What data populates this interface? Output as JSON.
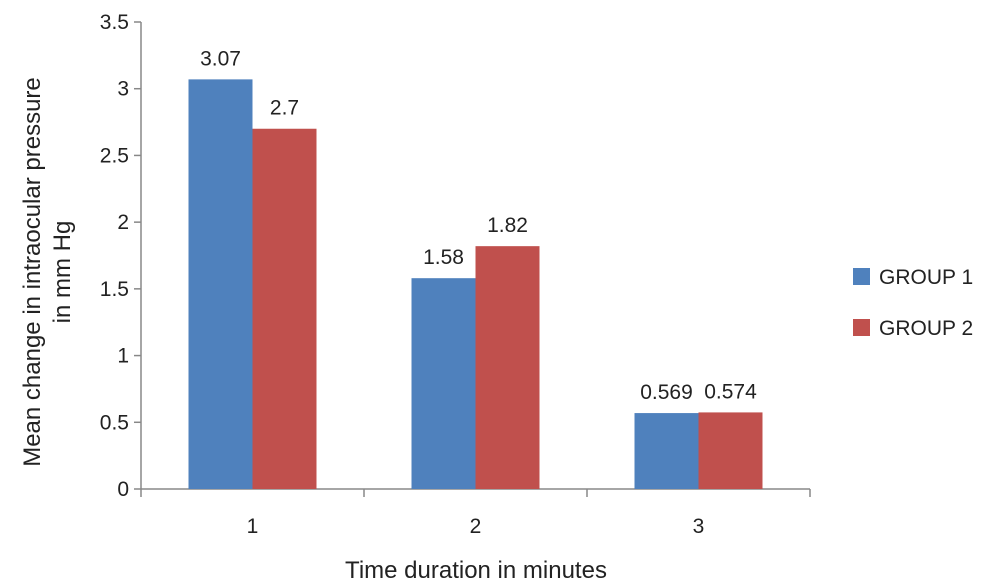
{
  "chart_data": {
    "type": "bar",
    "categories": [
      "1",
      "2",
      "3"
    ],
    "series": [
      {
        "name": "GROUP 1",
        "values": [
          3.07,
          1.58,
          0.569
        ],
        "labels": [
          "3.07",
          "1.58",
          "0.569"
        ],
        "color": "#4f81bd"
      },
      {
        "name": "GROUP 2",
        "values": [
          2.7,
          1.82,
          0.574
        ],
        "labels": [
          "2.7",
          "1.82",
          "0.574"
        ],
        "color": "#c0504d"
      }
    ],
    "title": "",
    "xlabel": "Time duration in minutes",
    "ylabel_lines": [
      "Mean change in intraocular pressure",
      "in mm Hg"
    ],
    "ylim": [
      0,
      3.5
    ],
    "yticks": [
      0,
      0.5,
      1,
      1.5,
      2,
      2.5,
      3,
      3.5
    ],
    "ytick_labels": [
      "0",
      "0.5",
      "1",
      "1.5",
      "2",
      "2.5",
      "3",
      "3.5"
    ],
    "grid": false,
    "legend_position": "right"
  }
}
